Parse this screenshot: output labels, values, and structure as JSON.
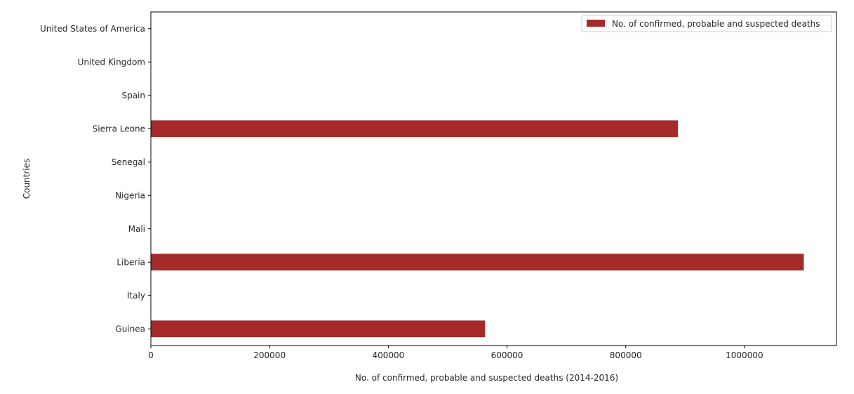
{
  "chart_data": {
    "type": "bar",
    "orientation": "horizontal",
    "categories": [
      "Guinea",
      "Italy",
      "Liberia",
      "Mali",
      "Nigeria",
      "Senegal",
      "Sierra Leone",
      "Spain",
      "United Kingdom",
      "United States of America"
    ],
    "series": [
      {
        "name": "No. of confirmed, probable and suspected deaths",
        "values": [
          563000,
          0,
          1100000,
          0,
          0,
          0,
          888000,
          0,
          0,
          0
        ],
        "color": "#a52a2a"
      }
    ],
    "xlabel": "No. of confirmed, probable and suspected deaths (2014-2016)",
    "ylabel": "Countries",
    "xlim": [
      0,
      1155000
    ],
    "xticks": [
      0,
      200000,
      400000,
      600000,
      800000,
      1000000
    ],
    "xtick_labels": [
      "0",
      "200000",
      "400000",
      "600000",
      "800000",
      "1000000"
    ],
    "grid": false,
    "legend_position": "top-right"
  }
}
